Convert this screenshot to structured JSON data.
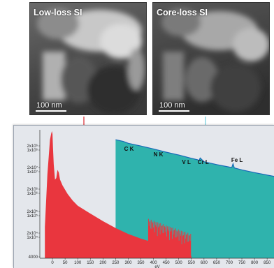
{
  "micrographs": [
    {
      "label": "Low-loss SI",
      "scale_bar": "100 nm"
    },
    {
      "label": "Core-loss SI",
      "scale_bar": "100 nm"
    }
  ],
  "colors": {
    "low_loss": "#e9363e",
    "core_loss": "#2fb3ad",
    "core_loss_line": "#1769b8",
    "arrow_low": "#d9262e",
    "arrow_core": "#6fcfe0",
    "panel_bg": "#e4e7ec"
  },
  "chart_data": {
    "type": "area",
    "xlabel": "eV",
    "ylabel": "",
    "xlim": [
      -50,
      880
    ],
    "x_ticks": [
      0,
      50,
      100,
      150,
      200,
      250,
      300,
      350,
      400,
      450,
      500,
      550,
      600,
      650,
      700,
      750,
      800,
      850
    ],
    "y_scale": "log",
    "ylim": [
      4000,
      3000000
    ],
    "y_ticks": [
      "2x10⁶",
      "1x10⁶",
      "2x10⁷",
      "1x10⁷",
      "2x10⁶",
      "1x10⁶",
      "2x10⁵",
      "1x10⁵",
      "2x10⁴",
      "1x10⁴",
      "4000"
    ],
    "series": [
      {
        "name": "",
        "x": [
          -30,
          -20,
          -10,
          -5,
          -2,
          0,
          2,
          5,
          10,
          15,
          20,
          25,
          30,
          40,
          60,
          80,
          100,
          150,
          200,
          250,
          300,
          350,
          400,
          450,
          500,
          530,
          550
        ],
        "y": [
          20000,
          300000,
          1800000,
          2500000,
          2800000,
          2400000,
          1200000,
          500000,
          230000,
          250000,
          380000,
          330000,
          230000,
          170000,
          110000,
          78000,
          60000,
          40000,
          27000,
          19000,
          14000,
          11000,
          9000,
          7000,
          5500,
          5000,
          4500
        ]
      },
      {
        "name": "",
        "x": [
          250,
          280,
          300,
          350,
          400,
          450,
          500,
          550,
          575,
          580,
          585,
          600,
          650,
          700,
          710,
          715,
          720,
          750,
          800,
          880
        ],
        "y": [
          1800000,
          1650000,
          1500000,
          1300000,
          1120000,
          950000,
          820000,
          690000,
          640000,
          610000,
          700000,
          580000,
          500000,
          440000,
          430000,
          520000,
          420000,
          380000,
          330000,
          270000
        ]
      }
    ],
    "annotations": [
      {
        "label": "C K",
        "x": 284
      },
      {
        "label": "N K",
        "x": 400
      },
      {
        "label": "V L",
        "x": 513
      },
      {
        "label": "Cr L",
        "x": 575
      },
      {
        "label": "Fe L",
        "x": 708
      }
    ]
  }
}
